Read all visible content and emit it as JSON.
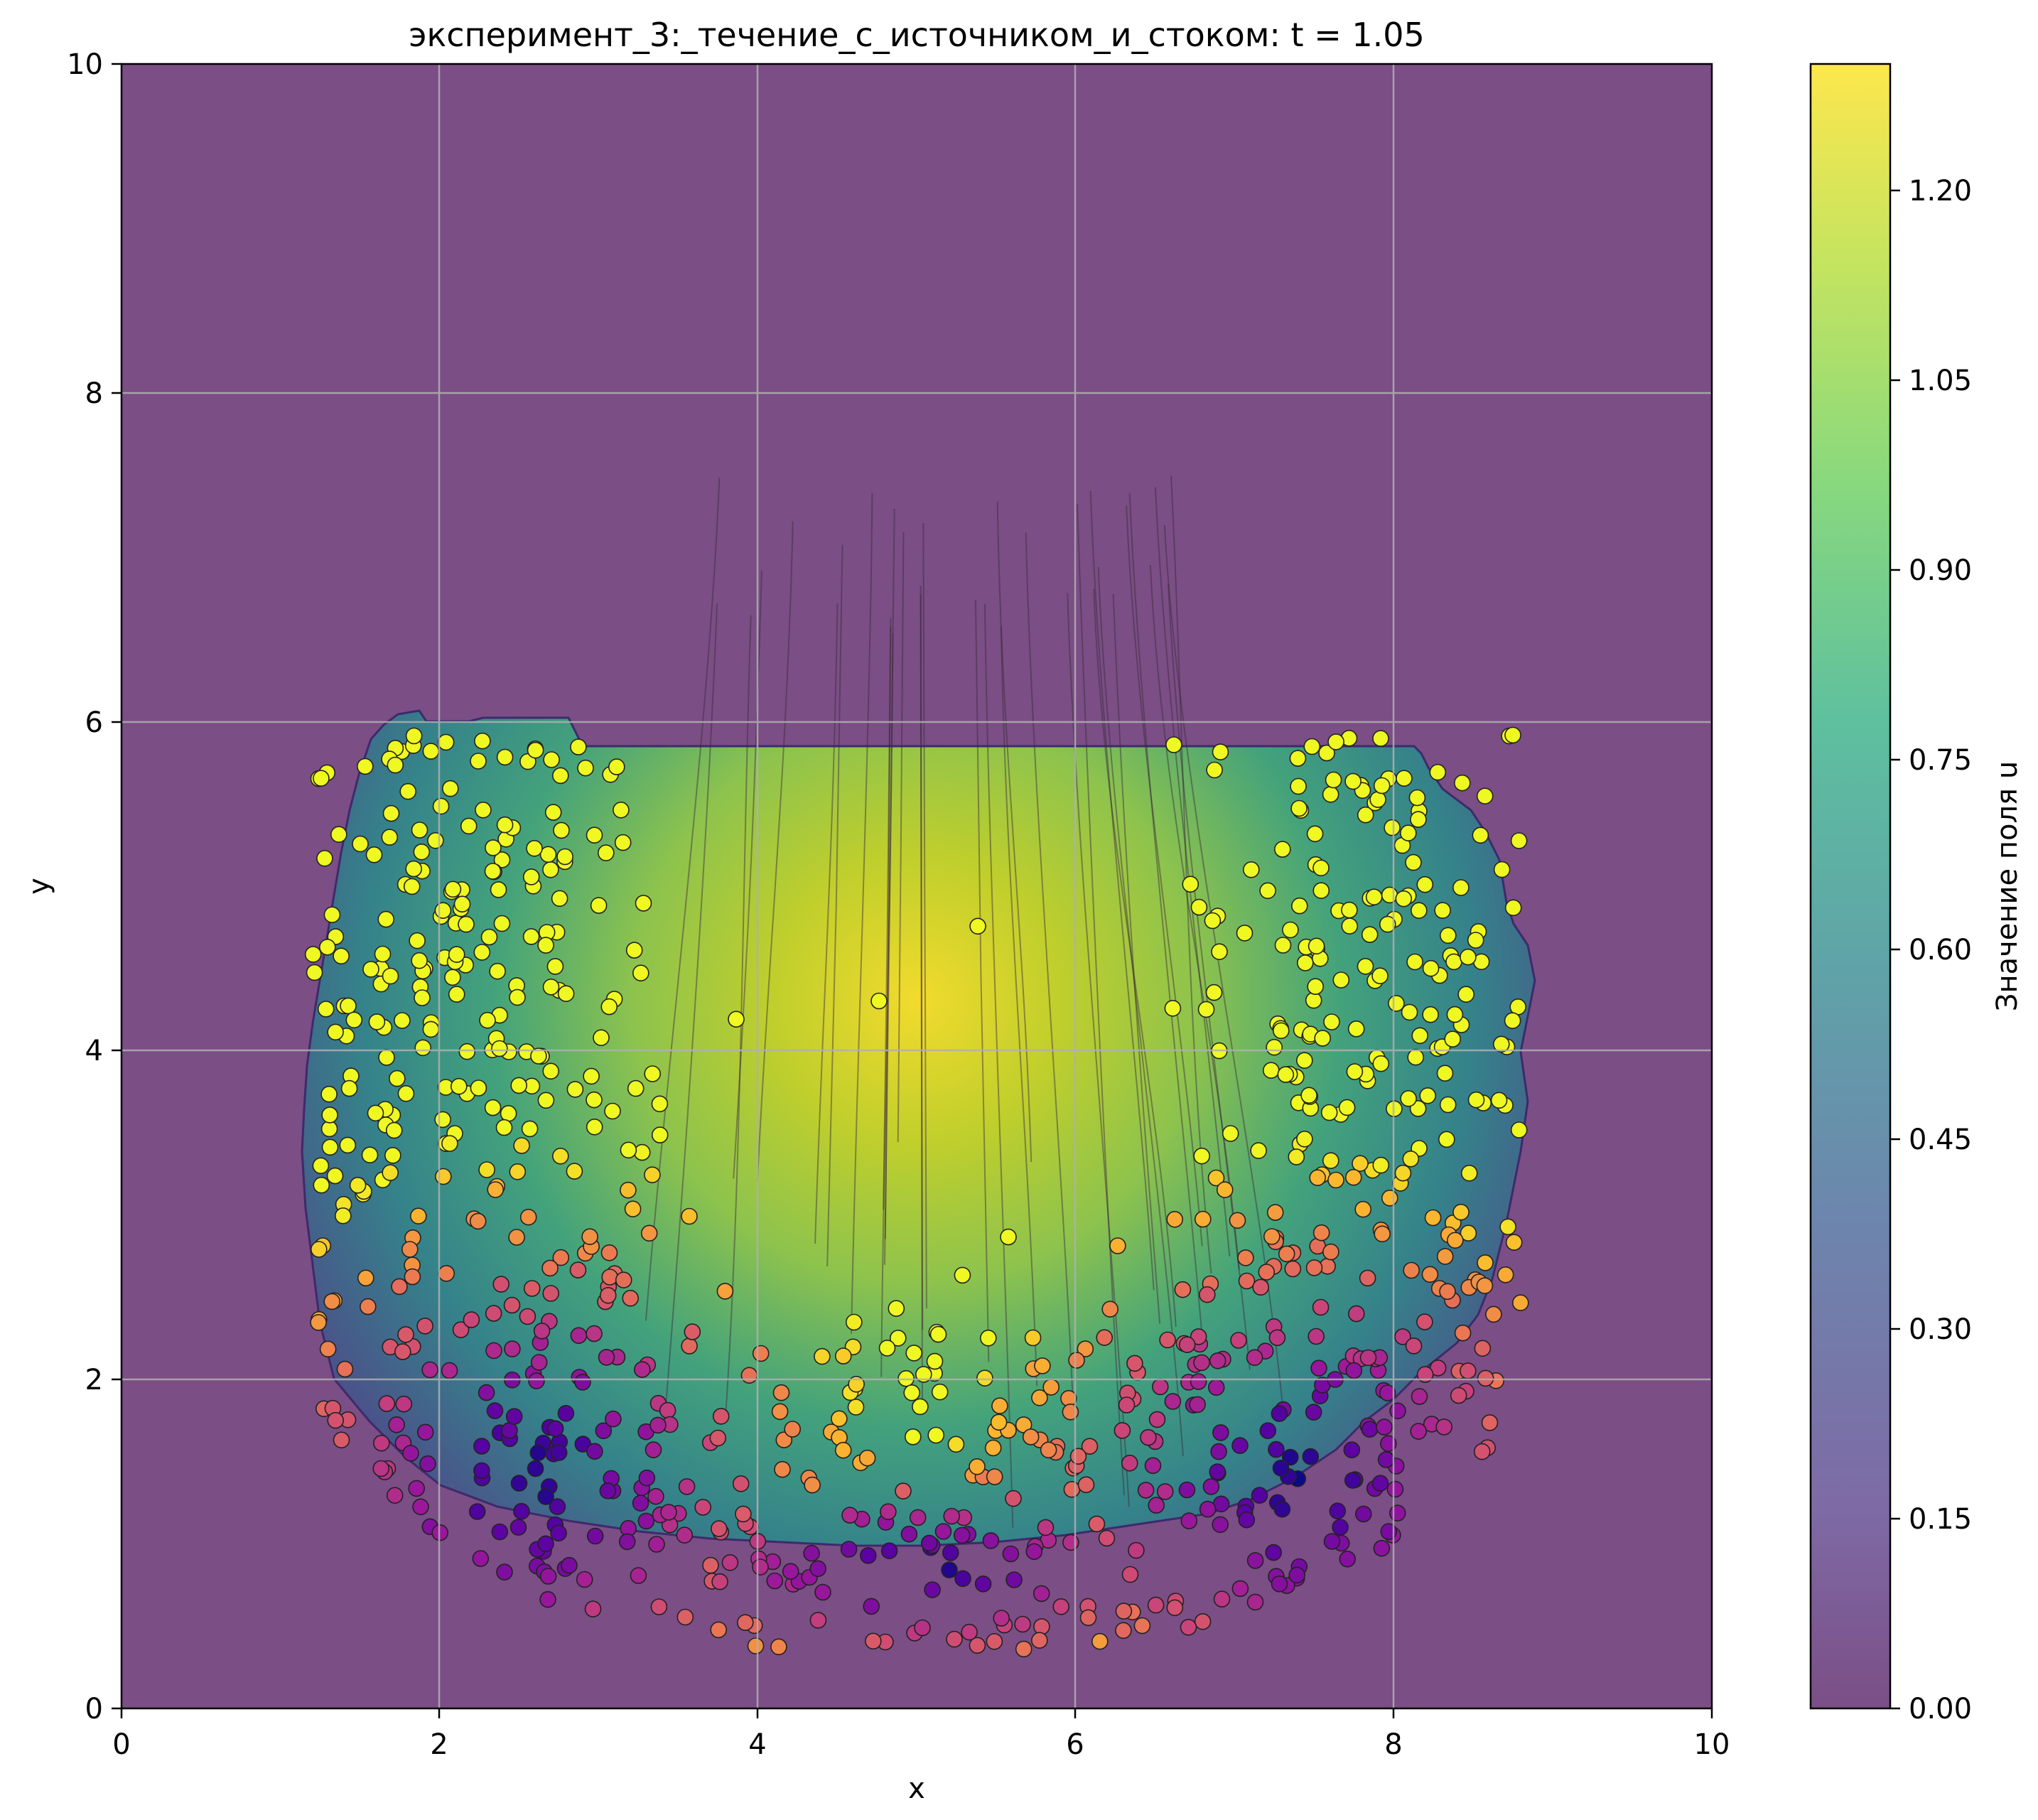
{
  "chart_data": {
    "type": "contour+scatter+streamlines",
    "title": "эксперимент_3:_течение_с_источником_и_стоком: t = 1.05",
    "xlabel": "x",
    "ylabel": "y",
    "xlim": [
      0,
      10
    ],
    "ylim": [
      0,
      10
    ],
    "x_ticks": [
      "0",
      "2",
      "4",
      "6",
      "8",
      "10"
    ],
    "y_ticks": [
      "0",
      "2",
      "4",
      "6",
      "8",
      "10"
    ],
    "grid": true,
    "colorbar": {
      "label": "Значение поля u",
      "range": [
        0.0,
        1.3
      ],
      "ticks": [
        "0.00",
        "0.15",
        "0.30",
        "0.45",
        "0.60",
        "0.75",
        "0.90",
        "1.05",
        "1.20"
      ],
      "colormap": "viridis",
      "colors": [
        "#440154",
        "#3b528b",
        "#21918c",
        "#5ec962",
        "#fde725"
      ]
    },
    "background_color": "#7b4e86",
    "field_region": {
      "x_range": [
        1.2,
        8.8
      ],
      "y_range": [
        0.3,
        5.95
      ],
      "peak": {
        "x": 5.0,
        "y": 4.3,
        "value": 1.3
      }
    },
    "particles": {
      "approx_count": 900,
      "colormap": "plasma",
      "description_ranges": "x 1.2–8.8, y 0.3–6.0"
    },
    "streamlines": {
      "x_range": [
        3.4,
        6.9
      ],
      "y_top": 7.5,
      "y_bottom": 1.0
    }
  }
}
